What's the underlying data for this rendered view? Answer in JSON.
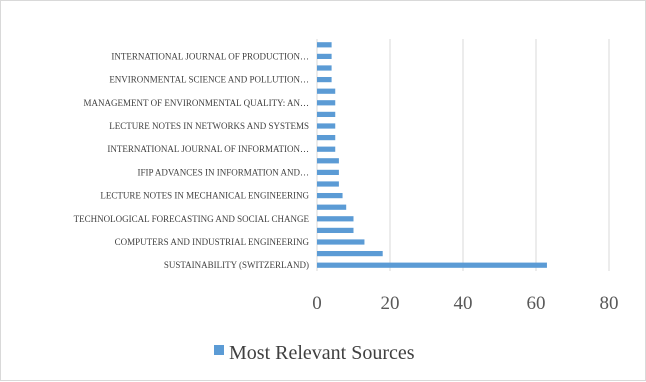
{
  "chart_data": {
    "type": "bar",
    "orientation": "horizontal",
    "categories": [
      "SUSTAINABILITY (SWITZERLAND)",
      "",
      "COMPUTERS AND INDUSTRIAL ENGINEERING",
      "",
      "TECHNOLOGICAL FORECASTING AND SOCIAL CHANGE",
      "",
      "LECTURE NOTES IN MECHANICAL ENGINEERING",
      "",
      "IFIP ADVANCES IN INFORMATION AND…",
      "",
      "INTERNATIONAL JOURNAL OF INFORMATION…",
      "",
      "LECTURE NOTES IN NETWORKS AND SYSTEMS",
      "",
      "MANAGEMENT OF ENVIRONMENTAL QUALITY: AN…",
      "",
      "ENVIRONMENTAL SCIENCE AND POLLUTION…",
      "",
      "INTERNATIONAL JOURNAL OF PRODUCTION…",
      ""
    ],
    "series": [
      {
        "name": "Most Relevant Sources",
        "color": "#5b9bd5",
        "values": [
          63,
          18,
          13,
          10,
          10,
          8,
          7,
          6,
          6,
          6,
          5,
          5,
          5,
          5,
          5,
          5,
          4,
          4,
          4,
          4
        ]
      }
    ],
    "xlim": [
      0,
      80
    ],
    "xticks": [
      "0",
      "20",
      "40",
      "60",
      "80"
    ],
    "grid": "vertical",
    "legend_position": "bottom"
  }
}
